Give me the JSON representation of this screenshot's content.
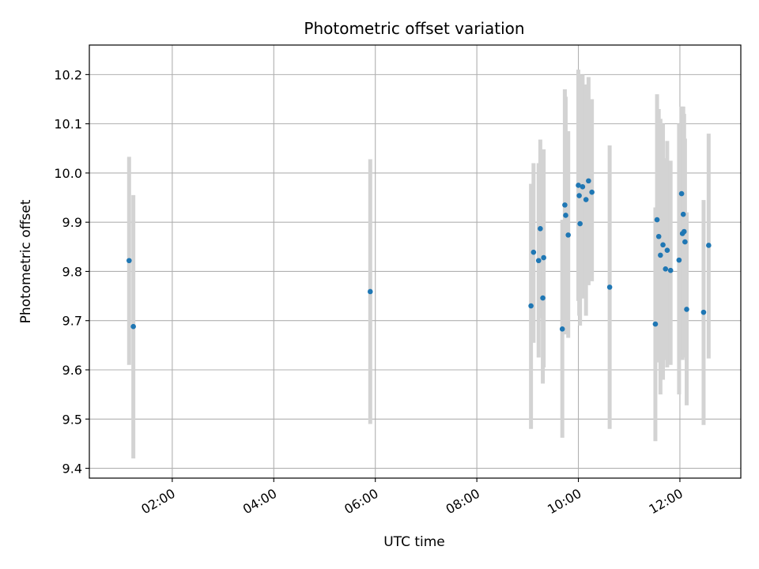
{
  "chart_data": {
    "type": "scatter",
    "title": "Photometric offset variation",
    "xlabel": "UTC time",
    "ylabel": "Photometric offset",
    "x_ticks": [
      "02:00",
      "04:00",
      "06:00",
      "08:00",
      "10:00",
      "12:00"
    ],
    "y_ticks": [
      "9.4",
      "9.5",
      "9.6",
      "9.7",
      "9.8",
      "9.9",
      "10.0",
      "10.1",
      "10.2"
    ],
    "xlim": [
      "00:22",
      "13:12"
    ],
    "ylim": [
      9.38,
      10.26
    ],
    "grid": true,
    "colors": {
      "point": "#1f77b4",
      "errorbar": "#d3d3d3",
      "grid": "#b0b0b0"
    },
    "points": [
      {
        "x": "01:09",
        "y": 9.822,
        "low": 9.61,
        "high": 10.033
      },
      {
        "x": "01:14",
        "y": 9.688,
        "low": 9.42,
        "high": 9.955
      },
      {
        "x": "05:54",
        "y": 9.759,
        "low": 9.49,
        "high": 10.028
      },
      {
        "x": "09:04",
        "y": 9.73,
        "low": 9.48,
        "high": 9.978
      },
      {
        "x": "09:07",
        "y": 9.839,
        "low": 9.655,
        "high": 10.02
      },
      {
        "x": "09:13",
        "y": 9.822,
        "low": 9.625,
        "high": 10.02
      },
      {
        "x": "09:15",
        "y": 9.887,
        "low": 9.705,
        "high": 10.068
      },
      {
        "x": "09:18",
        "y": 9.746,
        "low": 9.572,
        "high": 9.92
      },
      {
        "x": "09:19",
        "y": 9.828,
        "low": 9.605,
        "high": 10.048
      },
      {
        "x": "09:41",
        "y": 9.683,
        "low": 9.462,
        "high": 9.905
      },
      {
        "x": "09:44",
        "y": 9.935,
        "low": 9.698,
        "high": 10.17
      },
      {
        "x": "09:45",
        "y": 9.914,
        "low": 9.672,
        "high": 10.155
      },
      {
        "x": "09:48",
        "y": 9.874,
        "low": 9.665,
        "high": 10.085
      },
      {
        "x": "10:00",
        "y": 9.975,
        "low": 9.74,
        "high": 10.21
      },
      {
        "x": "10:01",
        "y": 9.954,
        "low": 9.71,
        "high": 10.2
      },
      {
        "x": "10:02",
        "y": 9.897,
        "low": 9.69,
        "high": 10.105
      },
      {
        "x": "10:05",
        "y": 9.972,
        "low": 9.745,
        "high": 10.2
      },
      {
        "x": "10:09",
        "y": 9.946,
        "low": 9.71,
        "high": 10.18
      },
      {
        "x": "10:12",
        "y": 9.984,
        "low": 9.772,
        "high": 10.195
      },
      {
        "x": "10:16",
        "y": 9.961,
        "low": 9.78,
        "high": 10.15
      },
      {
        "x": "10:37",
        "y": 9.768,
        "low": 9.48,
        "high": 10.056
      },
      {
        "x": "11:31",
        "y": 9.693,
        "low": 9.455,
        "high": 9.93
      },
      {
        "x": "11:33",
        "y": 9.905,
        "low": 9.66,
        "high": 10.16
      },
      {
        "x": "11:35",
        "y": 9.871,
        "low": 9.615,
        "high": 10.13
      },
      {
        "x": "11:37",
        "y": 9.833,
        "low": 9.55,
        "high": 10.11
      },
      {
        "x": "11:40",
        "y": 9.854,
        "low": 9.58,
        "high": 10.1
      },
      {
        "x": "11:43",
        "y": 9.805,
        "low": 9.62,
        "high": 10.03
      },
      {
        "x": "11:45",
        "y": 9.843,
        "low": 9.605,
        "high": 10.065
      },
      {
        "x": "11:49",
        "y": 9.802,
        "low": 9.61,
        "high": 10.025
      },
      {
        "x": "11:59",
        "y": 9.823,
        "low": 9.55,
        "high": 10.1
      },
      {
        "x": "12:02",
        "y": 9.958,
        "low": 9.78,
        "high": 10.135
      },
      {
        "x": "12:03",
        "y": 9.877,
        "low": 9.62,
        "high": 10.135
      },
      {
        "x": "12:04",
        "y": 9.916,
        "low": 9.64,
        "high": 10.135
      },
      {
        "x": "12:05",
        "y": 9.881,
        "low": 9.625,
        "high": 10.12
      },
      {
        "x": "12:06",
        "y": 9.86,
        "low": 9.625,
        "high": 10.07
      },
      {
        "x": "12:08",
        "y": 9.723,
        "low": 9.528,
        "high": 9.92
      },
      {
        "x": "12:28",
        "y": 9.717,
        "low": 9.488,
        "high": 9.945
      },
      {
        "x": "12:34",
        "y": 9.853,
        "low": 9.623,
        "high": 10.08
      }
    ]
  }
}
